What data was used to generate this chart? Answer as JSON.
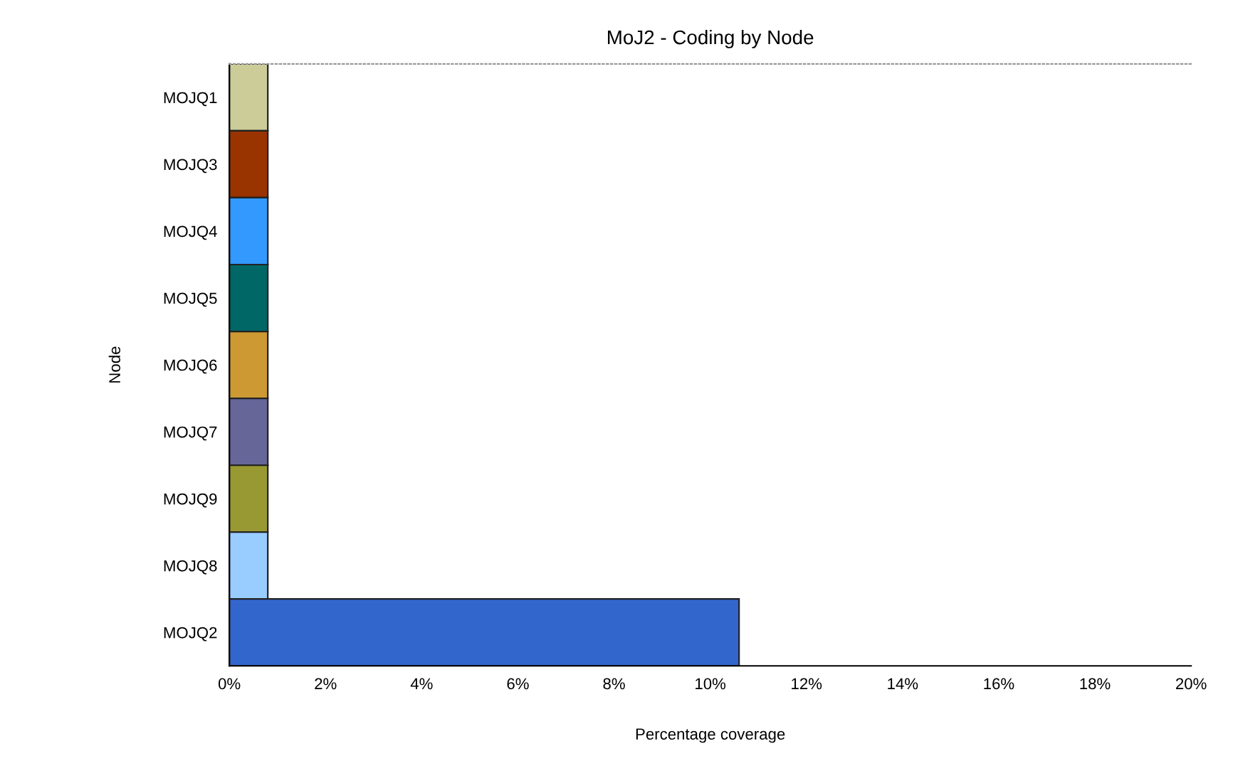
{
  "chart_data": {
    "type": "bar",
    "orientation": "horizontal",
    "title": "MoJ2 - Coding by Node",
    "xlabel": "Percentage coverage",
    "ylabel": "Node",
    "categories": [
      "MOJQ1",
      "MOJQ3",
      "MOJQ4",
      "MOJQ5",
      "MOJQ6",
      "MOJQ7",
      "MOJQ9",
      "MOJQ8",
      "MOJQ2"
    ],
    "values": [
      0.8,
      0.8,
      0.8,
      0.8,
      0.8,
      0.8,
      0.8,
      0.8,
      10.6
    ],
    "colors": [
      "#cccc99",
      "#993300",
      "#3399ff",
      "#006666",
      "#cc9933",
      "#666699",
      "#999933",
      "#99ccff",
      "#3366cc"
    ],
    "xlim": [
      0,
      20
    ],
    "xticks": [
      {
        "value": 0,
        "label": "0%"
      },
      {
        "value": 2,
        "label": "2%"
      },
      {
        "value": 4,
        "label": "4%"
      },
      {
        "value": 6,
        "label": "6%"
      },
      {
        "value": 8,
        "label": "8%"
      },
      {
        "value": 10,
        "label": "10%"
      },
      {
        "value": 12,
        "label": "12%"
      },
      {
        "value": 14,
        "label": "14%"
      },
      {
        "value": 16,
        "label": "16%"
      },
      {
        "value": 18,
        "label": "18%"
      },
      {
        "value": 20,
        "label": "20%"
      }
    ],
    "grid": false,
    "legend": false
  }
}
